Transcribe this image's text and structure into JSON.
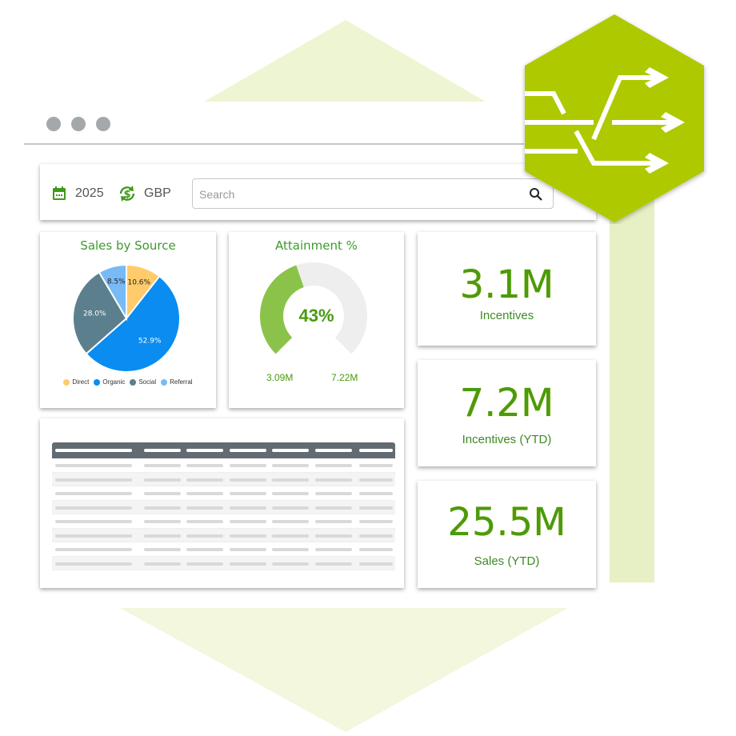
{
  "toolbar": {
    "year": "2025",
    "currency": "GBP",
    "search_placeholder": "Search"
  },
  "pie": {
    "title": "Sales by Source"
  },
  "gauge": {
    "title": "Attainment %",
    "value_label": "43%",
    "current": "3.09M",
    "target": "7.22M",
    "fraction": 0.43
  },
  "kpis": [
    {
      "value": "3.1M",
      "label": "Incentives"
    },
    {
      "value": "7.2M",
      "label": "Incentives (YTD)"
    },
    {
      "value": "25.5M",
      "label": "Sales (YTD)"
    }
  ],
  "colors": {
    "accent": "#afc905",
    "title_green": "#3e9a2c",
    "gauge_fill": "#8bc34a",
    "table_header": "#636b72"
  },
  "chart_data": {
    "type": "pie",
    "title": "Sales by Source",
    "categories": [
      "Direct",
      "Organic",
      "Social",
      "Referral"
    ],
    "values": [
      10.6,
      52.9,
      28.0,
      8.5
    ],
    "labels": [
      "10.6%",
      "52.9%",
      "28.0%",
      "8.5%"
    ],
    "colors": [
      "#ffcb6b",
      "#0a8cf0",
      "#5b7f8d",
      "#78baf5"
    ],
    "legend": "bottom"
  },
  "logo_icon": "merge-split-arrows-icon"
}
